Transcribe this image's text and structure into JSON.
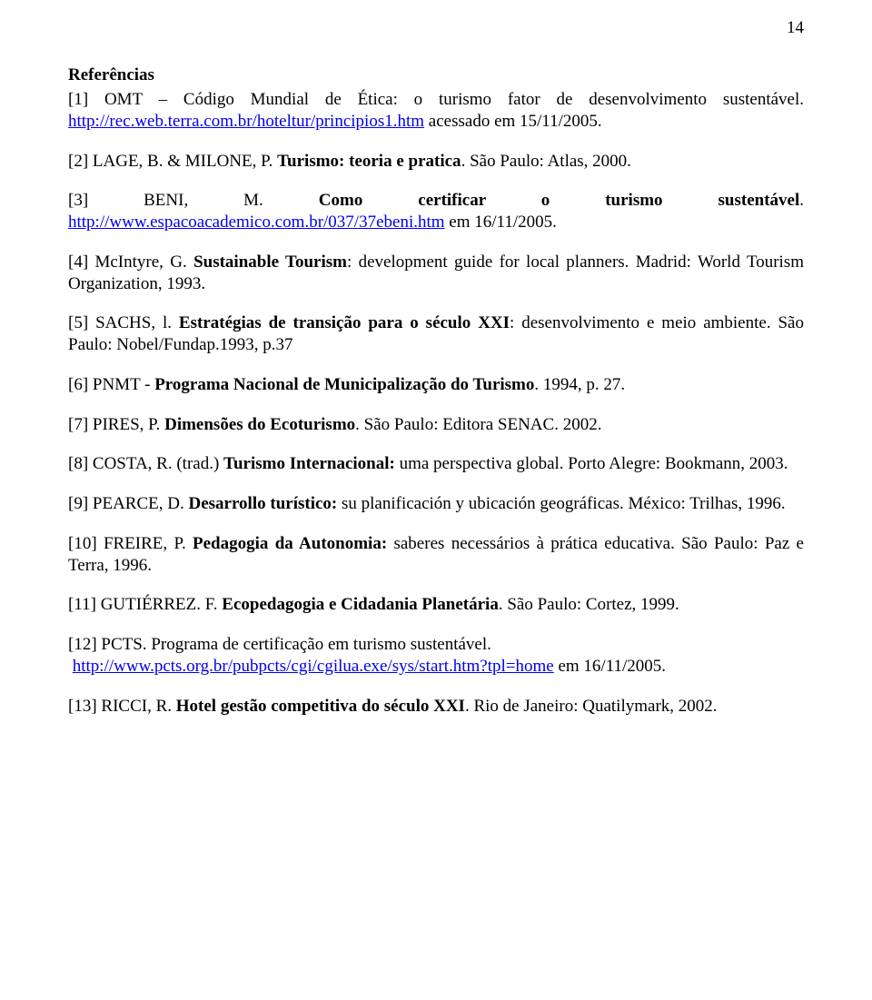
{
  "page_number": "14",
  "section_title": "Referências",
  "references": {
    "r1": {
      "prefix": "[1] OMT – Código Mundial de Ética: o turismo fator de desenvolvimento sustentável. ",
      "link": "http://rec.web.terra.com.br/hoteltur/principios1.htm",
      "suffix": " acessado em 15/11/2005."
    },
    "r2": {
      "prefix": "[2] LAGE, B. & MILONE, P. ",
      "bold": "Turismo: teoria e pratica",
      "suffix": ". São Paulo: Atlas, 2000."
    },
    "r3": {
      "prefix": "[3] BENI, M. ",
      "bold": "Como certificar o turismo sustentável",
      "suffix_a": ". ",
      "link": "http://www.espacoacademico.com.br/037/37ebeni.htm",
      "suffix_b": " em 16/11/2005."
    },
    "r4": {
      "prefix": "[4] McIntyre, G. ",
      "bold": "Sustainable Tourism",
      "suffix": ": development guide for local planners. Madrid: World Tourism Organization, 1993."
    },
    "r5": {
      "prefix": "[5] SACHS, l. ",
      "bold": "Estratégias de transição para o século XXI",
      "suffix": ": desenvolvimento e meio ambiente. São Paulo: Nobel/Fundap.1993, p.37"
    },
    "r6": {
      "prefix": "[6] PNMT - ",
      "bold": "Programa Nacional de Municipalização do Turismo",
      "suffix": ". 1994, p. 27."
    },
    "r7": {
      "prefix": "[7] PIRES, P. ",
      "bold": "Dimensões do Ecoturismo",
      "suffix": ". São Paulo: Editora SENAC. 2002."
    },
    "r8": {
      "prefix": "[8] COSTA, R. (trad.) ",
      "bold": "Turismo Internacional:",
      "suffix": " uma perspectiva global. Porto Alegre: Bookmann, 2003."
    },
    "r9": {
      "prefix": "[9] PEARCE, D. ",
      "bold": "Desarrollo turístico:",
      "suffix": " su planificación y ubicación geográficas. México: Trilhas, 1996."
    },
    "r10": {
      "prefix": "[10] FREIRE, P. ",
      "bold": "Pedagogia da Autonomia:",
      "suffix": " saberes necessários à prática educativa. São Paulo: Paz e Terra, 1996."
    },
    "r11": {
      "prefix": "[11] GUTIÉRREZ. F. ",
      "bold": "Ecopedagogia e Cidadania Planetária",
      "suffix": ". São Paulo: Cortez, 1999."
    },
    "r12": {
      "prefix": "[12] PCTS. Programa de certificação em turismo sustentável.",
      "link": "http://www.pcts.org.br/pubpcts/cgi/cgilua.exe/sys/start.htm?tpl=home",
      "suffix": " em 16/11/2005."
    },
    "r13": {
      "prefix": "[13] RICCI, R. ",
      "bold": "Hotel gestão competitiva do século XXI",
      "suffix": ". Rio de Janeiro: Quatilymark, 2002."
    }
  }
}
